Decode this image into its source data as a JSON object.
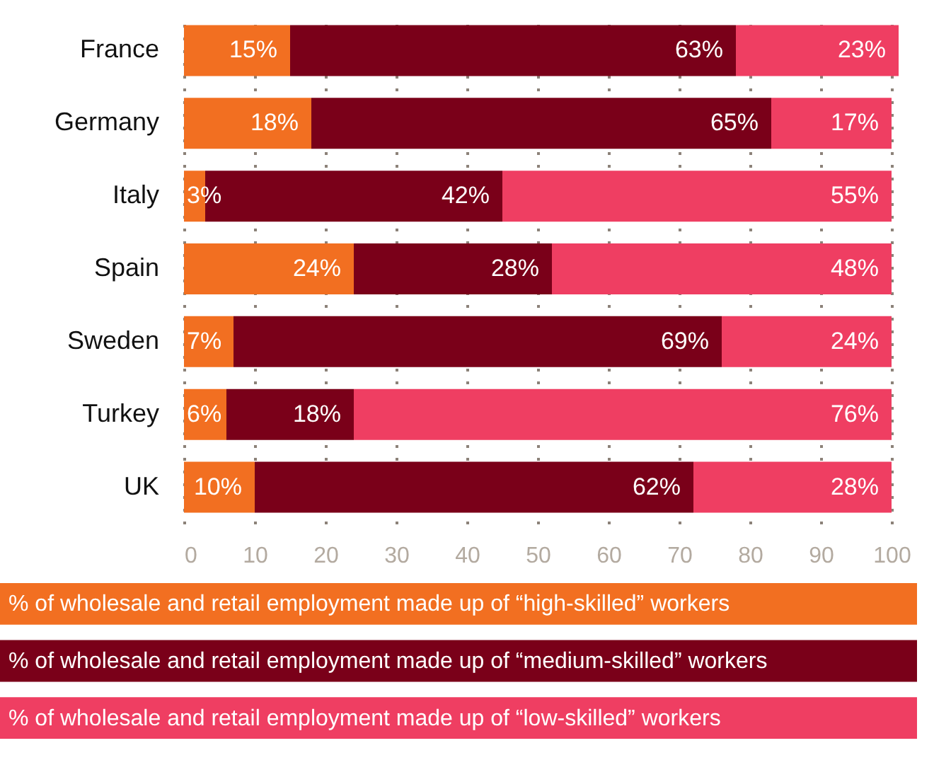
{
  "chart_data": {
    "type": "bar",
    "orientation": "horizontal",
    "stacked": true,
    "categories": [
      "France",
      "Germany",
      "Italy",
      "Spain",
      "Sweden",
      "Turkey",
      "UK"
    ],
    "series": [
      {
        "name": "% of wholesale and retail employment made up of “high-skilled” workers",
        "color": "#f26f21",
        "values": [
          15,
          18,
          3,
          24,
          7,
          6,
          10
        ],
        "value_labels": [
          "15%",
          "18%",
          "3%",
          "24%",
          "7%",
          "6%",
          "10%"
        ]
      },
      {
        "name": "% of wholesale and retail employment made up of “medium-skilled” workers",
        "color": "#7a0019",
        "values": [
          63,
          65,
          42,
          28,
          69,
          18,
          62
        ],
        "value_labels": [
          "63%",
          "65%",
          "42%",
          "28%",
          "69%",
          "18%",
          "62%"
        ]
      },
      {
        "name": "% of wholesale and retail employment made up of “low-skilled” workers",
        "color": "#ef3e62",
        "values": [
          23,
          17,
          55,
          48,
          24,
          76,
          28
        ],
        "value_labels": [
          "23%",
          "17%",
          "55%",
          "48%",
          "24%",
          "76%",
          "28%"
        ]
      }
    ],
    "xlim": [
      0,
      101
    ],
    "xticks": [
      0,
      10,
      20,
      30,
      40,
      50,
      60,
      70,
      80,
      90,
      100
    ],
    "grid": "x",
    "legend": "bottom"
  }
}
